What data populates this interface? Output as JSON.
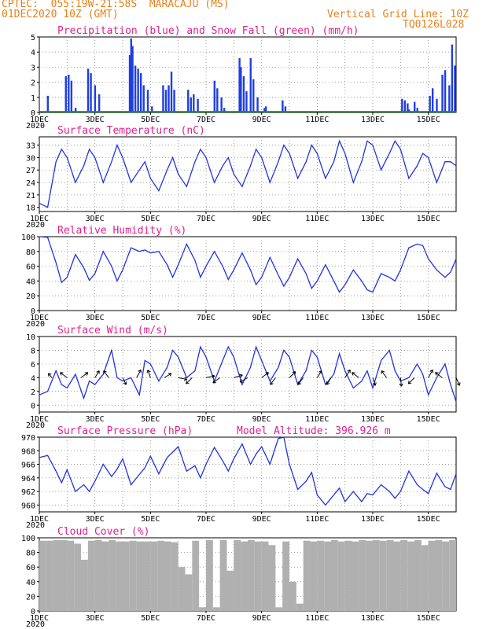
{
  "header": {
    "line1": "CPTEC:  055:19W-21:58S  MARACAJU (MS)",
    "line2": "01DEC2020 10Z (GMT)",
    "grid_note": "Vertical Grid Line: 10Z",
    "run_id": "TQ0126L028"
  },
  "colors": {
    "header": "#e8801a",
    "title": "#e0218a",
    "precip": "#1f3fe0",
    "snow": "#00a000",
    "line": "#2233dd",
    "cloud": "#b0b0b0",
    "arrow": "#000000"
  },
  "x_axis": {
    "day_labels": [
      "1DEC",
      "3DEC",
      "5DEC",
      "7DEC",
      "9DEC",
      "11DEC",
      "13DEC",
      "15DEC"
    ],
    "day_positions": [
      1,
      3,
      5,
      7,
      9,
      11,
      13,
      15
    ],
    "range": [
      1,
      16
    ],
    "year_fragment": "2020"
  },
  "chart_data": [
    {
      "type": "bar",
      "title": "Precipitation (blue) and Snow Fall (green) (mm/h)",
      "ylim": [
        0,
        5
      ],
      "yticks": [
        0,
        1,
        2,
        3,
        4,
        5
      ],
      "series": [
        {
          "name": "Precipitation",
          "x": [
            1.3,
            1.95,
            2.05,
            2.15,
            2.3,
            2.75,
            2.85,
            3.0,
            3.15,
            4.25,
            4.3,
            4.35,
            4.45,
            4.55,
            4.65,
            4.75,
            4.9,
            5.05,
            5.45,
            5.55,
            5.65,
            5.75,
            5.85,
            6.35,
            6.45,
            6.55,
            6.7,
            7.3,
            7.4,
            7.55,
            7.65,
            8.2,
            8.25,
            8.35,
            8.45,
            8.6,
            8.7,
            8.85,
            9.1,
            9.15,
            9.75,
            9.85,
            14.05,
            14.15,
            14.25,
            14.3,
            14.5,
            14.6,
            15.05,
            15.15,
            15.3,
            15.5,
            15.6,
            15.75,
            15.85,
            15.95
          ],
          "values": [
            1.1,
            2.4,
            2.5,
            2.1,
            0.3,
            2.9,
            2.6,
            1.8,
            1.2,
            3.8,
            4.9,
            4.4,
            3.1,
            2.9,
            2.6,
            1.8,
            1.5,
            0.4,
            1.8,
            1.5,
            1.8,
            2.7,
            1.5,
            1.5,
            1.0,
            1.2,
            0.9,
            2.1,
            1.6,
            1.0,
            0.3,
            3.6,
            3.0,
            2.4,
            1.4,
            3.6,
            2.2,
            1.0,
            0.3,
            0.4,
            0.8,
            0.4,
            0.9,
            0.8,
            0.6,
            0.2,
            0.7,
            0.3,
            1.1,
            1.6,
            0.9,
            2.5,
            2.8,
            1.8,
            4.5,
            3.1
          ]
        },
        {
          "name": "Snow Fall",
          "x": [],
          "values": []
        }
      ]
    },
    {
      "type": "line",
      "title": "Surface Temperature (nC)",
      "ylim": [
        17,
        35
      ],
      "yticks": [
        18,
        21,
        24,
        27,
        30,
        33
      ],
      "x": [
        1.0,
        1.3,
        1.6,
        1.8,
        2.0,
        2.3,
        2.6,
        2.8,
        3.0,
        3.3,
        3.6,
        3.8,
        4.0,
        4.3,
        4.6,
        4.8,
        5.0,
        5.3,
        5.6,
        5.8,
        6.0,
        6.3,
        6.6,
        6.8,
        7.0,
        7.3,
        7.6,
        7.8,
        8.0,
        8.3,
        8.6,
        8.8,
        9.0,
        9.3,
        9.6,
        9.8,
        10.0,
        10.3,
        10.6,
        10.8,
        11.0,
        11.3,
        11.6,
        11.8,
        12.0,
        12.3,
        12.6,
        12.8,
        13.0,
        13.3,
        13.6,
        13.8,
        14.0,
        14.3,
        14.6,
        14.8,
        15.0,
        15.3,
        15.6,
        15.8,
        16.0
      ],
      "values": [
        19,
        18,
        29,
        32,
        30,
        24,
        28,
        32,
        30,
        24,
        29,
        33,
        30,
        24,
        27,
        29,
        25,
        22,
        27,
        30,
        26,
        23,
        29,
        32,
        30,
        24,
        28,
        30,
        26,
        23,
        28,
        32,
        30,
        24,
        29,
        33,
        31,
        25,
        29,
        33,
        31,
        25,
        29,
        34,
        31,
        24,
        29,
        34,
        33,
        27,
        31,
        34,
        32,
        25,
        28,
        31,
        30,
        24,
        29,
        29,
        28
      ]
    },
    {
      "type": "line",
      "title": "Relative Humidity (%)",
      "ylim": [
        0,
        100
      ],
      "yticks": [
        0,
        20,
        40,
        60,
        80,
        100
      ],
      "x": [
        1.0,
        1.3,
        1.6,
        1.8,
        2.0,
        2.3,
        2.6,
        2.8,
        3.0,
        3.3,
        3.6,
        3.8,
        4.0,
        4.3,
        4.6,
        4.8,
        5.0,
        5.3,
        5.6,
        5.8,
        6.0,
        6.3,
        6.6,
        6.8,
        7.0,
        7.3,
        7.6,
        7.8,
        8.0,
        8.3,
        8.6,
        8.8,
        9.0,
        9.3,
        9.6,
        9.8,
        10.0,
        10.3,
        10.6,
        10.8,
        11.0,
        11.3,
        11.6,
        11.8,
        12.0,
        12.3,
        12.6,
        12.8,
        13.0,
        13.3,
        13.6,
        13.8,
        14.0,
        14.3,
        14.6,
        14.8,
        15.0,
        15.3,
        15.6,
        15.8,
        16.0
      ],
      "values": [
        100,
        99,
        65,
        38,
        45,
        76,
        58,
        41,
        50,
        80,
        60,
        40,
        55,
        85,
        80,
        82,
        78,
        80,
        62,
        45,
        62,
        90,
        68,
        45,
        60,
        80,
        60,
        42,
        55,
        78,
        55,
        35,
        45,
        72,
        48,
        33,
        45,
        70,
        50,
        30,
        40,
        62,
        40,
        25,
        35,
        55,
        40,
        28,
        25,
        50,
        45,
        40,
        55,
        85,
        90,
        88,
        70,
        55,
        45,
        52,
        70
      ]
    },
    {
      "type": "line",
      "title": "Surface Wind (m/s)",
      "ylim": [
        -1,
        10
      ],
      "yticks": [
        0,
        2,
        4,
        6,
        8,
        10
      ],
      "x": [
        1.0,
        1.3,
        1.6,
        1.8,
        2.0,
        2.3,
        2.6,
        2.8,
        3.0,
        3.3,
        3.6,
        3.8,
        4.0,
        4.3,
        4.6,
        4.8,
        5.0,
        5.3,
        5.6,
        5.8,
        6.0,
        6.3,
        6.6,
        6.8,
        7.0,
        7.3,
        7.6,
        7.8,
        8.0,
        8.3,
        8.6,
        8.8,
        9.0,
        9.3,
        9.6,
        9.8,
        10.0,
        10.3,
        10.6,
        10.8,
        11.0,
        11.3,
        11.6,
        11.8,
        12.0,
        12.3,
        12.6,
        12.8,
        13.0,
        13.3,
        13.6,
        13.8,
        14.0,
        14.3,
        14.6,
        14.8,
        15.0,
        15.3,
        15.6,
        15.8,
        16.0
      ],
      "values": [
        1.5,
        2.0,
        5.0,
        3.0,
        2.5,
        4.5,
        1.0,
        3.5,
        3.0,
        4.5,
        8.0,
        4.0,
        3.5,
        4.0,
        1.5,
        6.5,
        6.0,
        3.5,
        5.5,
        8.0,
        7.0,
        4.0,
        5.0,
        8.5,
        7.0,
        3.5,
        6.5,
        8.5,
        7.0,
        3.0,
        5.5,
        8.5,
        6.5,
        3.5,
        5.5,
        8.0,
        7.0,
        3.0,
        5.0,
        8.0,
        7.0,
        3.0,
        4.5,
        7.5,
        5.0,
        2.5,
        3.5,
        5.0,
        2.5,
        6.5,
        8.0,
        5.0,
        3.5,
        4.0,
        6.0,
        4.5,
        1.5,
        4.0,
        6.0,
        3.0,
        0.5
      ],
      "arrow_x": [
        1.45,
        2.0,
        2.5,
        3.0,
        3.5,
        4.0,
        4.5,
        5.0,
        5.5,
        6.0,
        6.5,
        7.0,
        7.5,
        8.0,
        8.5,
        9.0,
        9.5,
        10.0,
        10.5,
        11.0,
        11.5,
        12.0,
        12.5,
        13.0,
        13.5,
        14.0,
        14.5,
        15.0,
        15.5,
        16.0
      ],
      "arrow_u": [
        -0.4,
        -0.8,
        0.8,
        0.5,
        -0.6,
        0.4,
        0.5,
        -0.3,
        0.8,
        1.0,
        -0.7,
        1.0,
        -0.8,
        1.0,
        -0.9,
        0.8,
        -0.6,
        0.7,
        -0.6,
        0.5,
        -0.5,
        0.6,
        -0.8,
        0.3,
        -0.6,
        0.1,
        -0.7,
        0.5,
        -0.8,
        0.4
      ],
      "arrow_v": [
        0.5,
        0.6,
        0.6,
        0.8,
        0.8,
        -0.8,
        0.9,
        0.9,
        0.5,
        -0.2,
        -0.7,
        0.2,
        -0.6,
        0.3,
        -0.5,
        0.6,
        -0.8,
        0.7,
        -0.8,
        0.8,
        -0.8,
        0.9,
        0.6,
        -0.9,
        0.8,
        -1.0,
        -0.7,
        0.9,
        0.6,
        -0.9
      ]
    },
    {
      "type": "line",
      "title": "Surface Pressure (hPa)",
      "subtitle": "Model Altitude: 396.926 m",
      "ylim": [
        959,
        970
      ],
      "yticks": [
        960,
        962,
        964,
        966,
        968,
        970
      ],
      "x": [
        1.0,
        1.3,
        1.6,
        1.8,
        2.0,
        2.3,
        2.6,
        2.8,
        3.0,
        3.3,
        3.6,
        3.8,
        4.0,
        4.3,
        4.6,
        4.8,
        5.0,
        5.3,
        5.6,
        5.8,
        6.0,
        6.3,
        6.6,
        6.8,
        7.0,
        7.3,
        7.6,
        7.8,
        8.0,
        8.3,
        8.6,
        8.8,
        9.0,
        9.3,
        9.6,
        9.8,
        10.0,
        10.3,
        10.6,
        10.8,
        11.0,
        11.3,
        11.6,
        11.8,
        12.0,
        12.3,
        12.6,
        12.8,
        13.0,
        13.3,
        13.6,
        13.8,
        14.0,
        14.3,
        14.6,
        14.8,
        15.0,
        15.3,
        15.6,
        15.8,
        16.0
      ],
      "values": [
        967.0,
        967.3,
        965.0,
        963.3,
        965.2,
        962.0,
        963.0,
        962.0,
        963.5,
        966.0,
        964.2,
        965.3,
        966.8,
        963.0,
        964.5,
        965.5,
        967.2,
        964.6,
        967.0,
        967.8,
        968.6,
        965.0,
        965.8,
        964.0,
        966.0,
        968.5,
        966.5,
        965.0,
        966.8,
        969.0,
        966.0,
        967.5,
        968.6,
        966.0,
        969.8,
        970.0,
        966.0,
        962.3,
        963.5,
        964.8,
        961.5,
        960.0,
        961.5,
        962.5,
        960.5,
        962.0,
        960.5,
        961.7,
        961.5,
        963.0,
        962.0,
        961.0,
        962.0,
        965.0,
        963.0,
        962.3,
        961.7,
        964.7,
        962.7,
        962.3,
        964.6
      ]
    },
    {
      "type": "bar",
      "title": "Cloud Cover (%)",
      "ylim": [
        0,
        100
      ],
      "yticks": [
        0,
        20,
        40,
        60,
        80,
        100
      ],
      "x": [
        1.0,
        1.25,
        1.5,
        1.75,
        2.0,
        2.25,
        2.5,
        2.75,
        3.0,
        3.25,
        3.5,
        3.75,
        4.0,
        4.25,
        4.5,
        4.75,
        5.0,
        5.25,
        5.5,
        5.75,
        6.0,
        6.25,
        6.5,
        6.75,
        7.0,
        7.25,
        7.5,
        7.75,
        8.0,
        8.25,
        8.5,
        8.75,
        9.0,
        9.25,
        9.5,
        9.75,
        10.0,
        10.25,
        10.5,
        10.75,
        11.0,
        11.25,
        11.5,
        11.75,
        12.0,
        12.25,
        12.5,
        12.75,
        13.0,
        13.25,
        13.5,
        13.75,
        14.0,
        14.25,
        14.5,
        14.75,
        15.0,
        15.25,
        15.5,
        15.75,
        16.0
      ],
      "values": [
        96,
        96,
        97,
        97,
        96,
        92,
        70,
        96,
        97,
        95,
        97,
        95,
        95,
        96,
        95,
        95,
        95,
        96,
        95,
        94,
        60,
        50,
        96,
        5,
        97,
        5,
        97,
        55,
        97,
        95,
        97,
        95,
        95,
        90,
        5,
        95,
        40,
        10,
        96,
        95,
        96,
        95,
        97,
        95,
        96,
        95,
        97,
        96,
        97,
        96,
        97,
        95,
        97,
        95,
        97,
        90,
        96,
        97,
        95,
        97,
        95
      ]
    }
  ]
}
